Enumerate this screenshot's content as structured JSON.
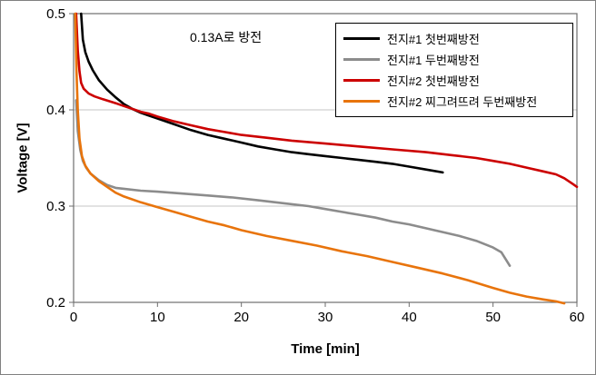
{
  "chart_data": {
    "type": "line",
    "annotation": "0.13A로 방전",
    "xlabel": "Time [min]",
    "ylabel": "Voltage [V]",
    "xlim": [
      0,
      60
    ],
    "ylim": [
      0.2,
      0.5
    ],
    "xticks": [
      0,
      10,
      20,
      30,
      40,
      50,
      60
    ],
    "yticks": [
      0.2,
      0.3,
      0.4,
      0.5
    ],
    "grid": "horizontal-only",
    "grid_color": "#c6c6c6",
    "legend_position": "top-right",
    "series": [
      {
        "name": "전지#1 첫번째방전",
        "color": "#000000",
        "points": [
          [
            0.9,
            0.5
          ],
          [
            1.1,
            0.473
          ],
          [
            1.4,
            0.46
          ],
          [
            1.8,
            0.45
          ],
          [
            2.3,
            0.441
          ],
          [
            3,
            0.431
          ],
          [
            4,
            0.421
          ],
          [
            5,
            0.413
          ],
          [
            6,
            0.406
          ],
          [
            7,
            0.401
          ],
          [
            8,
            0.397
          ],
          [
            9,
            0.394
          ],
          [
            10,
            0.391
          ],
          [
            12,
            0.385
          ],
          [
            14,
            0.379
          ],
          [
            16,
            0.374
          ],
          [
            18,
            0.37
          ],
          [
            20,
            0.366
          ],
          [
            22,
            0.362
          ],
          [
            24,
            0.359
          ],
          [
            26,
            0.356
          ],
          [
            28,
            0.354
          ],
          [
            30,
            0.352
          ],
          [
            32,
            0.35
          ],
          [
            34,
            0.348
          ],
          [
            36,
            0.346
          ],
          [
            38,
            0.344
          ],
          [
            40,
            0.341
          ],
          [
            42,
            0.338
          ],
          [
            44,
            0.335
          ]
        ]
      },
      {
        "name": "전지#1 두번째방전",
        "color": "#8c8c8c",
        "points": [
          [
            0.3,
            0.41
          ],
          [
            0.5,
            0.378
          ],
          [
            0.8,
            0.358
          ],
          [
            1.1,
            0.347
          ],
          [
            1.5,
            0.34
          ],
          [
            2,
            0.334
          ],
          [
            3,
            0.327
          ],
          [
            4,
            0.322
          ],
          [
            5,
            0.319
          ],
          [
            6,
            0.318
          ],
          [
            8,
            0.316
          ],
          [
            10,
            0.315
          ],
          [
            13,
            0.313
          ],
          [
            16,
            0.311
          ],
          [
            19,
            0.309
          ],
          [
            22,
            0.306
          ],
          [
            25,
            0.303
          ],
          [
            28,
            0.3
          ],
          [
            30,
            0.297
          ],
          [
            32,
            0.294
          ],
          [
            34,
            0.291
          ],
          [
            36,
            0.288
          ],
          [
            38,
            0.284
          ],
          [
            40,
            0.281
          ],
          [
            42,
            0.277
          ],
          [
            44,
            0.273
          ],
          [
            46,
            0.269
          ],
          [
            48,
            0.264
          ],
          [
            50,
            0.257
          ],
          [
            51,
            0.252
          ],
          [
            52,
            0.238
          ]
        ]
      },
      {
        "name": "전지#2 첫번째방전",
        "color": "#cc0000",
        "points": [
          [
            0.3,
            0.5
          ],
          [
            0.5,
            0.462
          ],
          [
            0.7,
            0.44
          ],
          [
            0.9,
            0.428
          ],
          [
            1.2,
            0.422
          ],
          [
            1.8,
            0.417
          ],
          [
            2.5,
            0.414
          ],
          [
            3.5,
            0.411
          ],
          [
            5,
            0.407
          ],
          [
            6,
            0.404
          ],
          [
            7,
            0.401
          ],
          [
            8,
            0.398
          ],
          [
            9,
            0.396
          ],
          [
            10,
            0.393
          ],
          [
            12,
            0.388
          ],
          [
            14,
            0.384
          ],
          [
            16,
            0.38
          ],
          [
            18,
            0.377
          ],
          [
            20,
            0.374
          ],
          [
            23,
            0.371
          ],
          [
            26,
            0.368
          ],
          [
            30,
            0.365
          ],
          [
            34,
            0.362
          ],
          [
            38,
            0.359
          ],
          [
            42,
            0.356
          ],
          [
            45,
            0.353
          ],
          [
            48,
            0.35
          ],
          [
            50,
            0.347
          ],
          [
            52,
            0.344
          ],
          [
            54,
            0.34
          ],
          [
            56,
            0.336
          ],
          [
            57.5,
            0.333
          ],
          [
            58.5,
            0.329
          ],
          [
            59.5,
            0.323
          ],
          [
            60,
            0.32
          ]
        ]
      },
      {
        "name": "전지#2 찌그려뜨려 두번째방전",
        "color": "#e8740c",
        "points": [
          [
            0.2,
            0.5
          ],
          [
            0.35,
            0.44
          ],
          [
            0.5,
            0.4
          ],
          [
            0.7,
            0.37
          ],
          [
            1,
            0.352
          ],
          [
            1.4,
            0.342
          ],
          [
            2,
            0.334
          ],
          [
            3,
            0.326
          ],
          [
            4,
            0.32
          ],
          [
            5,
            0.314
          ],
          [
            6,
            0.31
          ],
          [
            8,
            0.304
          ],
          [
            10,
            0.299
          ],
          [
            12,
            0.294
          ],
          [
            14,
            0.289
          ],
          [
            16,
            0.284
          ],
          [
            18,
            0.28
          ],
          [
            20,
            0.275
          ],
          [
            23,
            0.269
          ],
          [
            26,
            0.264
          ],
          [
            29,
            0.259
          ],
          [
            32,
            0.253
          ],
          [
            35,
            0.248
          ],
          [
            38,
            0.242
          ],
          [
            41,
            0.236
          ],
          [
            44,
            0.23
          ],
          [
            47,
            0.223
          ],
          [
            50,
            0.215
          ],
          [
            52,
            0.21
          ],
          [
            54,
            0.206
          ],
          [
            56,
            0.203
          ],
          [
            57.5,
            0.201
          ],
          [
            58.5,
            0.199
          ]
        ]
      }
    ]
  }
}
